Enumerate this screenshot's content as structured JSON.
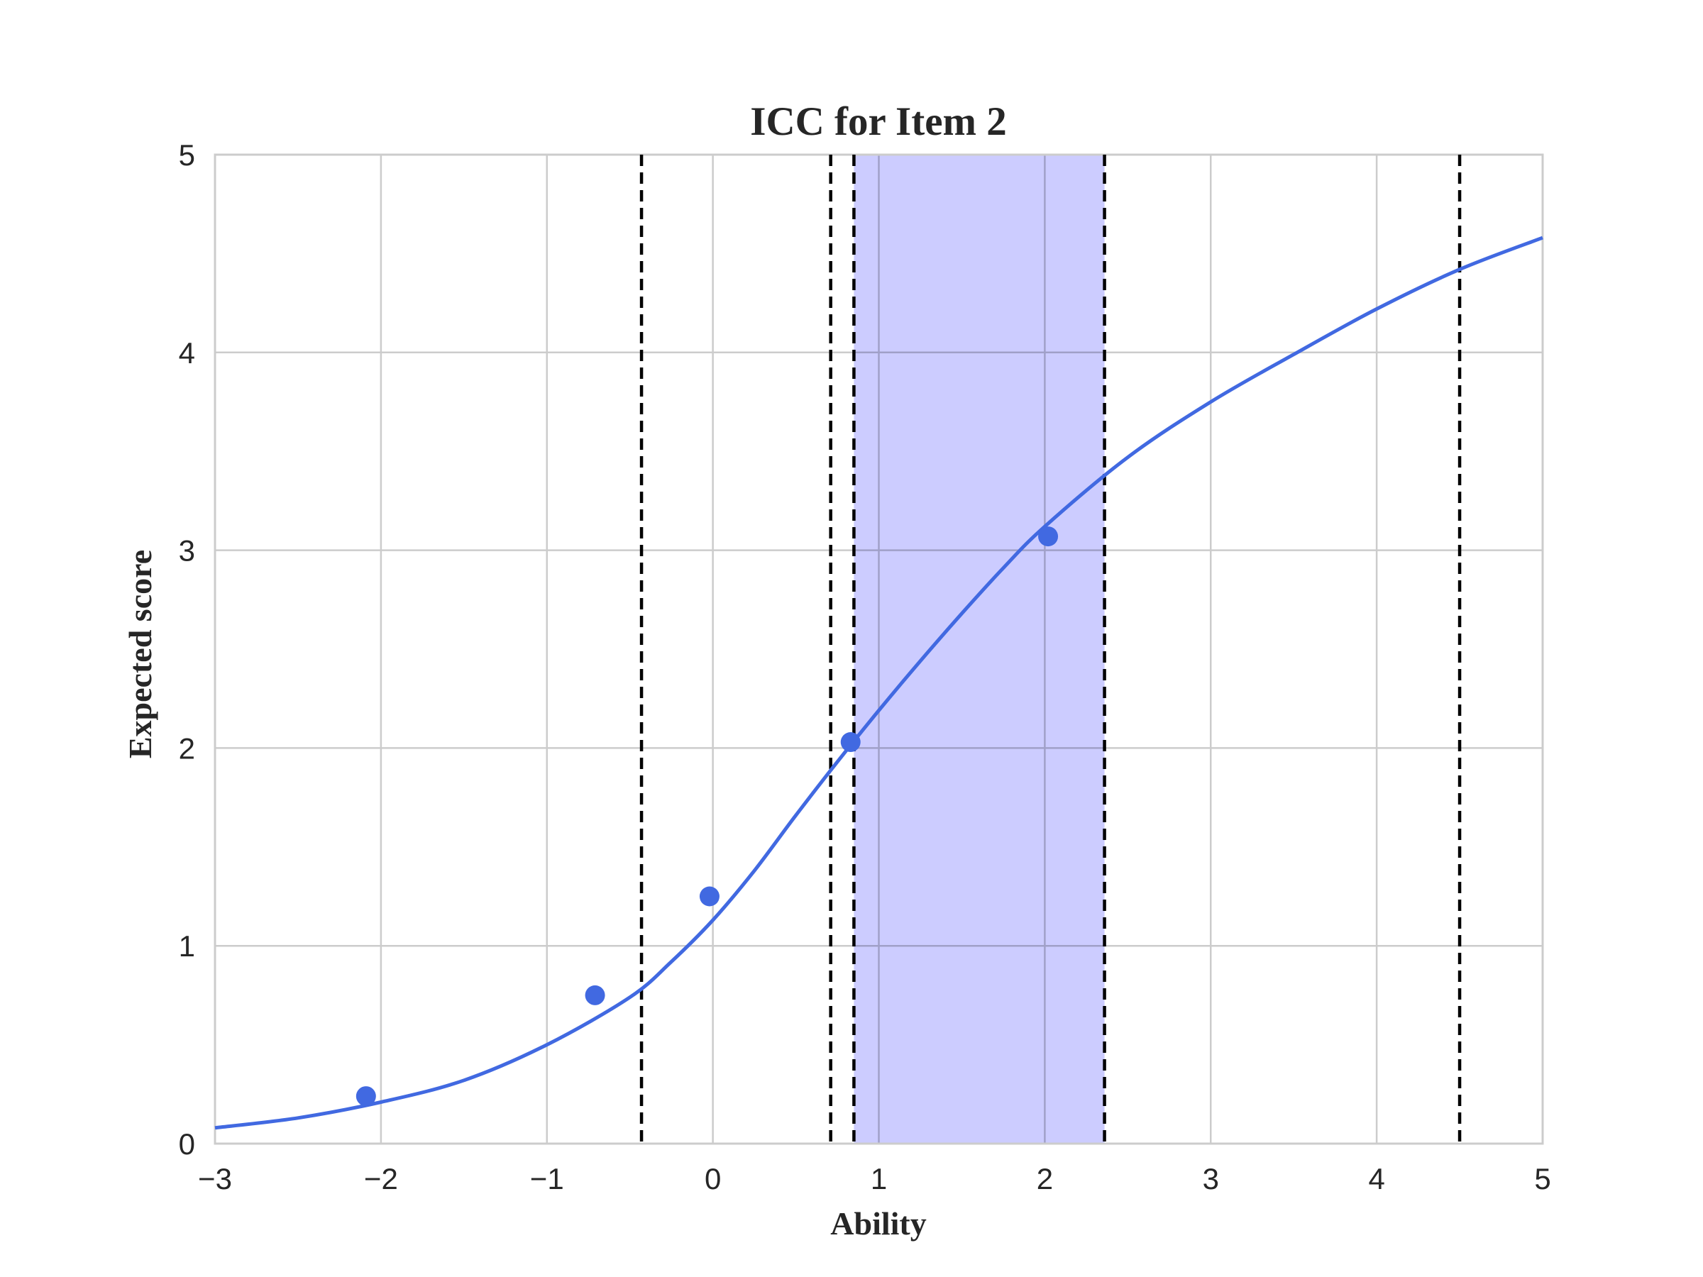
{
  "chart_data": {
    "type": "line",
    "title": "ICC for Item 2",
    "xlabel": "Ability",
    "ylabel": "Expected score",
    "xlim": [
      -3,
      5
    ],
    "ylim": [
      0,
      5
    ],
    "xticks": [
      -3,
      -2,
      -1,
      0,
      1,
      2,
      3,
      4,
      5
    ],
    "yticks": [
      0,
      1,
      2,
      3,
      4,
      5
    ],
    "xtick_labels": [
      "−3",
      "−2",
      "−1",
      "0",
      "1",
      "2",
      "3",
      "4",
      "5"
    ],
    "ytick_labels": [
      "0",
      "1",
      "2",
      "3",
      "4",
      "5"
    ],
    "grid": true,
    "colors": {
      "curve": "#4169E1",
      "points": "#4169E1",
      "band": "#CCCCFF",
      "thresholds": "#000000",
      "grid": "#CCCCCC"
    },
    "curve": {
      "x": [
        -3.0,
        -2.5,
        -2.0,
        -1.5,
        -1.0,
        -0.5,
        -0.25,
        0.0,
        0.25,
        0.5,
        0.75,
        1.0,
        1.25,
        1.5,
        1.75,
        2.0,
        2.5,
        3.0,
        3.5,
        4.0,
        4.5,
        5.0
      ],
      "y": [
        0.08,
        0.13,
        0.21,
        0.32,
        0.5,
        0.74,
        0.92,
        1.13,
        1.38,
        1.66,
        1.93,
        2.19,
        2.44,
        2.68,
        2.91,
        3.12,
        3.47,
        3.75,
        3.99,
        4.22,
        4.42,
        4.58
      ]
    },
    "points": {
      "x": [
        -2.09,
        -0.71,
        -0.02,
        0.83,
        2.02
      ],
      "y": [
        0.24,
        0.75,
        1.25,
        2.03,
        3.07
      ]
    },
    "thresholds": [
      -0.43,
      0.71,
      0.85,
      2.36,
      4.5
    ],
    "band": [
      0.85,
      2.36
    ]
  }
}
